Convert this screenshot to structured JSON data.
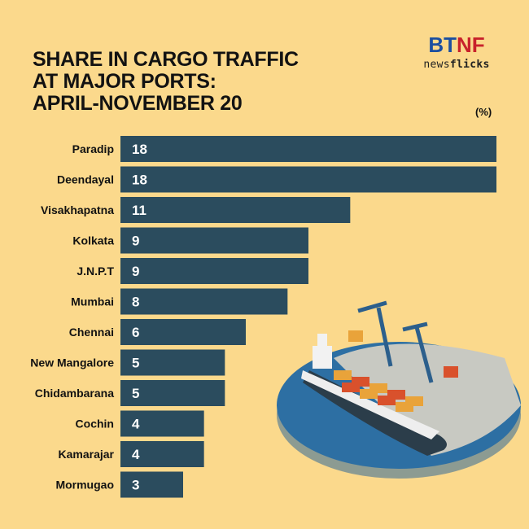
{
  "title_lines": [
    "SHARE IN CARGO TRAFFIC",
    "AT MAJOR PORTS:",
    "APRIL-NOVEMBER 20"
  ],
  "logo": {
    "main_left": "BT",
    "main_right": "NF",
    "sub_left": "news",
    "sub_right": "flicks"
  },
  "unit": "(%)",
  "colors": {
    "background": "#fbd98c",
    "bar": "#2b4c5e",
    "text": "#121212",
    "bar_label": "#ffffff"
  },
  "chart_data": {
    "type": "bar",
    "orientation": "horizontal",
    "title": "SHARE IN CARGO TRAFFIC AT MAJOR PORTS: APRIL-NOVEMBER 20",
    "unit": "(%)",
    "categories": [
      "Paradip",
      "Deendayal",
      "Visakhapatna",
      "Kolkata",
      "J.N.P.T",
      "Mumbai",
      "Chennai",
      "New Mangalore",
      "Chidambarana",
      "Cochin",
      "Kamarajar",
      "Mormugao"
    ],
    "values": [
      18,
      18,
      11,
      9,
      9,
      8,
      6,
      5,
      5,
      4,
      4,
      3
    ],
    "xlim": [
      0,
      18
    ],
    "grid": false,
    "legend": "none"
  }
}
